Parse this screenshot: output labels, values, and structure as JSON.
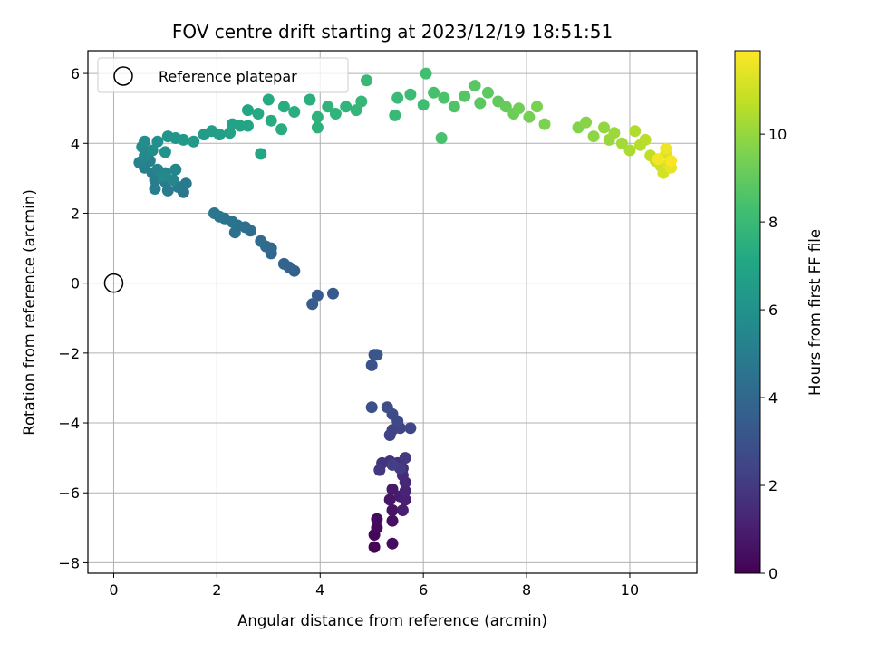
{
  "chart_data": {
    "type": "scatter",
    "title": "FOV centre drift starting at 2023/12/19 18:51:51",
    "xlabel": "Angular distance from reference (arcmin)",
    "ylabel": "Rotation from reference (arcmin)",
    "xlim": [
      -0.5,
      11.3
    ],
    "ylim": [
      -8.3,
      6.65
    ],
    "xticks": [
      0,
      2,
      4,
      6,
      8,
      10
    ],
    "yticks": [
      -8,
      -6,
      -4,
      -2,
      0,
      2,
      4,
      6
    ],
    "grid": true,
    "legend_position": "top-left",
    "colormap": "viridis",
    "colorbar": {
      "label": "Hours from first FF file",
      "range": [
        0,
        11.9
      ],
      "ticks": [
        0,
        2,
        4,
        6,
        8,
        10
      ]
    },
    "reference": {
      "name": "Reference platepar",
      "x": 0,
      "y": 0
    },
    "series": [
      {
        "name": "FOV centre drift",
        "points": [
          [
            5.05,
            -7.55,
            0.1
          ],
          [
            5.05,
            -7.2,
            0.2
          ],
          [
            5.1,
            -7.0,
            0.3
          ],
          [
            5.1,
            -6.75,
            0.35
          ],
          [
            5.4,
            -7.45,
            0.4
          ],
          [
            5.4,
            -6.8,
            0.5
          ],
          [
            5.4,
            -6.5,
            0.6
          ],
          [
            5.35,
            -6.2,
            0.7
          ],
          [
            5.4,
            -5.9,
            0.8
          ],
          [
            5.55,
            -6.1,
            0.9
          ],
          [
            5.6,
            -6.5,
            1.0
          ],
          [
            5.65,
            -6.2,
            1.1
          ],
          [
            5.65,
            -5.95,
            1.2
          ],
          [
            5.65,
            -5.7,
            1.3
          ],
          [
            5.6,
            -5.5,
            1.4
          ],
          [
            5.6,
            -5.3,
            1.5
          ],
          [
            5.5,
            -5.15,
            1.6
          ],
          [
            5.35,
            -5.1,
            1.7
          ],
          [
            5.2,
            -5.15,
            1.8
          ],
          [
            5.15,
            -5.35,
            1.9
          ],
          [
            5.65,
            -5.0,
            2.0
          ],
          [
            5.55,
            -5.3,
            2.1
          ],
          [
            5.4,
            -5.2,
            2.2
          ],
          [
            5.35,
            -4.35,
            2.3
          ],
          [
            5.4,
            -4.2,
            2.35
          ],
          [
            5.55,
            -4.15,
            2.4
          ],
          [
            5.75,
            -4.15,
            2.5
          ],
          [
            5.5,
            -3.95,
            2.6
          ],
          [
            5.4,
            -3.75,
            2.7
          ],
          [
            5.3,
            -3.55,
            2.8
          ],
          [
            5.0,
            -3.55,
            2.9
          ],
          [
            5.0,
            -2.35,
            3.0
          ],
          [
            5.05,
            -2.05,
            3.1
          ],
          [
            5.1,
            -2.05,
            3.2
          ],
          [
            4.25,
            -0.3,
            3.3
          ],
          [
            3.95,
            -0.35,
            3.4
          ],
          [
            3.85,
            -0.6,
            3.5
          ],
          [
            3.5,
            0.35,
            3.6
          ],
          [
            3.4,
            0.45,
            3.7
          ],
          [
            3.3,
            0.55,
            3.8
          ],
          [
            3.05,
            0.85,
            3.9
          ],
          [
            3.05,
            1.0,
            4.0
          ],
          [
            2.95,
            1.05,
            4.1
          ],
          [
            2.85,
            1.2,
            4.2
          ],
          [
            2.65,
            1.5,
            4.3
          ],
          [
            2.55,
            1.6,
            4.35
          ],
          [
            2.4,
            1.65,
            4.4
          ],
          [
            2.35,
            1.45,
            4.45
          ],
          [
            2.3,
            1.75,
            4.5
          ],
          [
            2.15,
            1.85,
            4.55
          ],
          [
            2.05,
            1.9,
            4.6
          ],
          [
            1.95,
            2.0,
            4.65
          ],
          [
            1.35,
            2.6,
            4.7
          ],
          [
            1.4,
            2.85,
            4.8
          ],
          [
            1.25,
            2.75,
            4.85
          ],
          [
            1.05,
            2.65,
            4.9
          ],
          [
            1.0,
            2.9,
            4.95
          ],
          [
            0.8,
            2.7,
            5.0
          ],
          [
            0.8,
            2.95,
            5.05
          ],
          [
            0.75,
            3.15,
            5.1
          ],
          [
            0.6,
            3.3,
            5.15
          ],
          [
            0.7,
            3.5,
            5.2
          ],
          [
            0.5,
            3.45,
            5.25
          ],
          [
            0.85,
            3.25,
            5.3
          ],
          [
            1.0,
            3.15,
            5.35
          ],
          [
            1.2,
            3.25,
            5.4
          ],
          [
            1.15,
            2.95,
            5.45
          ],
          [
            0.95,
            3.05,
            5.5
          ],
          [
            0.6,
            3.65,
            5.55
          ],
          [
            0.55,
            3.9,
            5.6
          ],
          [
            0.6,
            4.05,
            5.7
          ],
          [
            0.75,
            3.8,
            5.8
          ],
          [
            0.85,
            4.05,
            5.9
          ],
          [
            1.0,
            3.75,
            6.0
          ],
          [
            1.05,
            4.2,
            6.1
          ],
          [
            1.2,
            4.15,
            6.2
          ],
          [
            1.35,
            4.1,
            6.3
          ],
          [
            1.55,
            4.05,
            6.4
          ],
          [
            1.75,
            4.25,
            6.5
          ],
          [
            1.9,
            4.35,
            6.6
          ],
          [
            2.05,
            4.25,
            6.7
          ],
          [
            2.25,
            4.3,
            6.8
          ],
          [
            2.3,
            4.55,
            6.85
          ],
          [
            2.45,
            4.5,
            6.9
          ],
          [
            2.6,
            4.5,
            7.0
          ],
          [
            2.85,
            3.7,
            7.05
          ],
          [
            2.6,
            4.95,
            7.1
          ],
          [
            2.8,
            4.85,
            7.2
          ],
          [
            3.0,
            5.25,
            7.25
          ],
          [
            3.05,
            4.65,
            7.3
          ],
          [
            3.3,
            5.05,
            7.35
          ],
          [
            3.25,
            4.4,
            7.4
          ],
          [
            3.5,
            4.9,
            7.45
          ],
          [
            3.8,
            5.25,
            7.5
          ],
          [
            3.95,
            4.45,
            7.55
          ],
          [
            3.95,
            4.75,
            7.6
          ],
          [
            4.15,
            5.05,
            7.65
          ],
          [
            4.3,
            4.85,
            7.7
          ],
          [
            4.5,
            5.05,
            7.75
          ],
          [
            4.7,
            4.95,
            7.8
          ],
          [
            4.8,
            5.2,
            7.85
          ],
          [
            4.9,
            5.8,
            7.9
          ],
          [
            5.45,
            4.8,
            7.95
          ],
          [
            5.5,
            5.3,
            8.0
          ],
          [
            5.75,
            5.4,
            8.1
          ],
          [
            6.0,
            5.1,
            8.2
          ],
          [
            6.05,
            6.0,
            8.3
          ],
          [
            6.2,
            5.45,
            8.4
          ],
          [
            6.35,
            4.15,
            8.45
          ],
          [
            6.4,
            5.3,
            8.5
          ],
          [
            6.6,
            5.05,
            8.6
          ],
          [
            6.8,
            5.35,
            8.7
          ],
          [
            7.0,
            5.65,
            8.8
          ],
          [
            7.1,
            5.15,
            8.85
          ],
          [
            7.25,
            5.45,
            8.9
          ],
          [
            7.45,
            5.2,
            9.0
          ],
          [
            7.6,
            5.05,
            9.1
          ],
          [
            7.75,
            4.85,
            9.2
          ],
          [
            7.85,
            5.0,
            9.3
          ],
          [
            8.05,
            4.75,
            9.4
          ],
          [
            8.2,
            5.05,
            9.5
          ],
          [
            8.35,
            4.55,
            9.55
          ],
          [
            9.0,
            4.45,
            9.65
          ],
          [
            9.15,
            4.6,
            9.75
          ],
          [
            9.3,
            4.2,
            9.85
          ],
          [
            9.5,
            4.45,
            9.95
          ],
          [
            9.6,
            4.1,
            10.05
          ],
          [
            9.7,
            4.3,
            10.15
          ],
          [
            9.85,
            4.0,
            10.25
          ],
          [
            10.0,
            3.8,
            10.35
          ],
          [
            10.1,
            4.35,
            10.45
          ],
          [
            10.2,
            3.95,
            10.55
          ],
          [
            10.3,
            4.1,
            10.65
          ],
          [
            10.4,
            3.65,
            10.75
          ],
          [
            10.5,
            3.5,
            10.9
          ],
          [
            10.6,
            3.35,
            11.0
          ],
          [
            10.65,
            3.15,
            11.1
          ],
          [
            10.7,
            3.7,
            11.2
          ],
          [
            10.75,
            3.4,
            11.35
          ],
          [
            10.8,
            3.3,
            11.5
          ],
          [
            10.7,
            3.85,
            11.6
          ],
          [
            10.55,
            3.55,
            11.7
          ],
          [
            10.8,
            3.5,
            11.8
          ]
        ]
      }
    ]
  }
}
